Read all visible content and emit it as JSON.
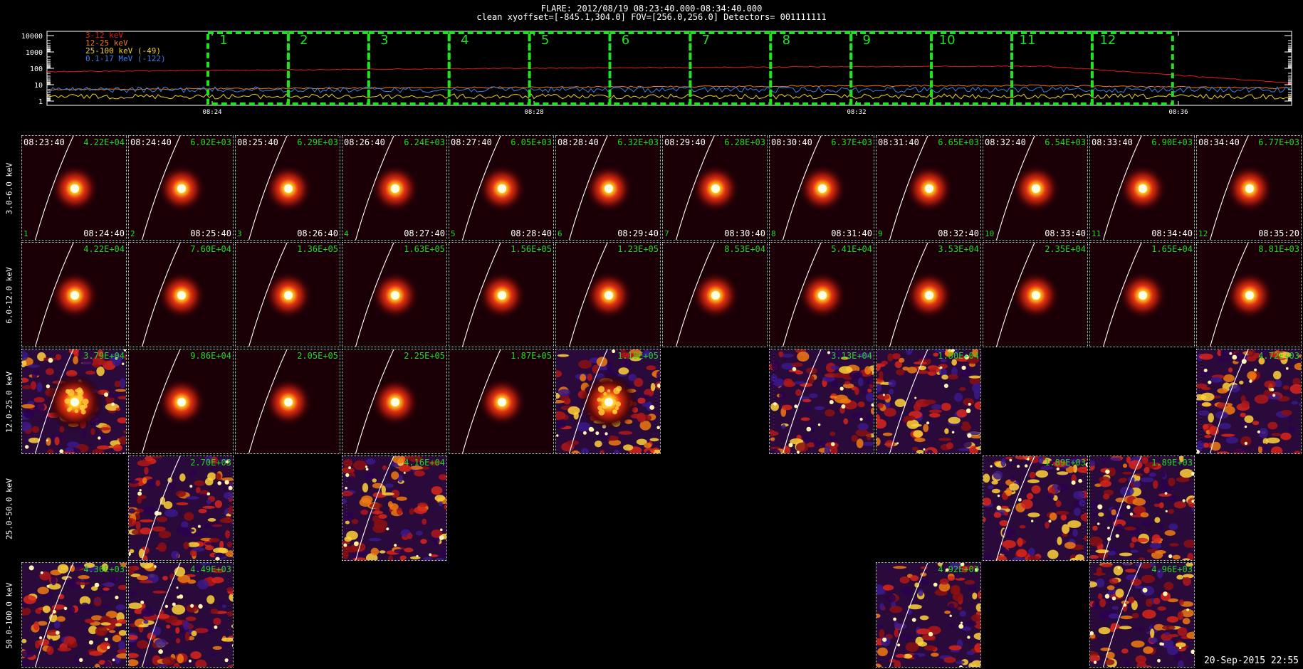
{
  "header": {
    "line1": "FLARE: 2012/08/19 08:23:40.000-08:34:40.000",
    "line2": "clean    xyoffset=[-845.1,304.0]    FOV=[256.0,256.0]    Detectors= 001111111"
  },
  "lightcurve": {
    "y_ticks": [
      "10000",
      "1000",
      "100",
      "10",
      "1"
    ],
    "x_ticks": [
      "08:24",
      "08:28",
      "08:32",
      "08:36"
    ],
    "legend": [
      {
        "label": "3-12 keV",
        "color": "#e21b1b"
      },
      {
        "label": "12-25 keV",
        "color": "#f07a10"
      },
      {
        "label": "25-100 keV (-49)",
        "color": "#f2d21a"
      },
      {
        "label": "0.1-17 MeV (-122)",
        "color": "#3b7fe8"
      }
    ],
    "interval_labels": [
      "1",
      "2",
      "3",
      "4",
      "5",
      "6",
      "7",
      "8",
      "9",
      "10",
      "11",
      "12"
    ],
    "box_color": "#22e022"
  },
  "rows": [
    {
      "label": "3.0-6.0 keV"
    },
    {
      "label": "6.0-12.0 keV"
    },
    {
      "label": "12.0-25.0 keV"
    },
    {
      "label": "25.0-50.0 keV"
    },
    {
      "label": "50.0-100.0 keV"
    }
  ],
  "panels": [
    {
      "row": 0,
      "col": 0,
      "t_start": "08:23:40",
      "max": "4.22E+04",
      "idx": "1",
      "t_end": "08:24:40",
      "kind": "source"
    },
    {
      "row": 0,
      "col": 1,
      "t_start": "08:24:40",
      "max": "6.02E+03",
      "idx": "2",
      "t_end": "08:25:40",
      "kind": "source"
    },
    {
      "row": 0,
      "col": 2,
      "t_start": "08:25:40",
      "max": "6.29E+03",
      "idx": "3",
      "t_end": "08:26:40",
      "kind": "source"
    },
    {
      "row": 0,
      "col": 3,
      "t_start": "08:26:40",
      "max": "6.24E+03",
      "idx": "4",
      "t_end": "08:27:40",
      "kind": "source"
    },
    {
      "row": 0,
      "col": 4,
      "t_start": "08:27:40",
      "max": "6.05E+03",
      "idx": "5",
      "t_end": "08:28:40",
      "kind": "source"
    },
    {
      "row": 0,
      "col": 5,
      "t_start": "08:28:40",
      "max": "6.32E+03",
      "idx": "6",
      "t_end": "08:29:40",
      "kind": "source"
    },
    {
      "row": 0,
      "col": 6,
      "t_start": "08:29:40",
      "max": "6.28E+03",
      "idx": "7",
      "t_end": "08:30:40",
      "kind": "source"
    },
    {
      "row": 0,
      "col": 7,
      "t_start": "08:30:40",
      "max": "6.37E+03",
      "idx": "8",
      "t_end": "08:31:40",
      "kind": "source"
    },
    {
      "row": 0,
      "col": 8,
      "t_start": "08:31:40",
      "max": "6.65E+03",
      "idx": "9",
      "t_end": "08:32:40",
      "kind": "source"
    },
    {
      "row": 0,
      "col": 9,
      "t_start": "08:32:40",
      "max": "6.54E+03",
      "idx": "10",
      "t_end": "08:33:40",
      "kind": "source"
    },
    {
      "row": 0,
      "col": 10,
      "t_start": "08:33:40",
      "max": "6.90E+03",
      "idx": "11",
      "t_end": "08:34:40",
      "kind": "source"
    },
    {
      "row": 0,
      "col": 11,
      "t_start": "08:34:40",
      "max": "6.77E+03",
      "idx": "12",
      "t_end": "08:35:20",
      "kind": "source"
    },
    {
      "row": 1,
      "col": 0,
      "max": "4.22E+04",
      "kind": "source"
    },
    {
      "row": 1,
      "col": 1,
      "max": "7.60E+04",
      "kind": "source"
    },
    {
      "row": 1,
      "col": 2,
      "max": "1.36E+05",
      "kind": "source"
    },
    {
      "row": 1,
      "col": 3,
      "max": "1.63E+05",
      "kind": "source"
    },
    {
      "row": 1,
      "col": 4,
      "max": "1.56E+05",
      "kind": "source"
    },
    {
      "row": 1,
      "col": 5,
      "max": "1.23E+05",
      "kind": "source"
    },
    {
      "row": 1,
      "col": 6,
      "max": "8.53E+04",
      "kind": "source"
    },
    {
      "row": 1,
      "col": 7,
      "max": "5.41E+04",
      "kind": "source"
    },
    {
      "row": 1,
      "col": 8,
      "max": "3.53E+04",
      "kind": "source"
    },
    {
      "row": 1,
      "col": 9,
      "max": "2.35E+04",
      "kind": "source"
    },
    {
      "row": 1,
      "col": 10,
      "max": "1.65E+04",
      "kind": "source"
    },
    {
      "row": 1,
      "col": 11,
      "max": "8.81E+03",
      "kind": "source"
    },
    {
      "row": 2,
      "col": 0,
      "max": "3.79E+04",
      "kind": "noisy"
    },
    {
      "row": 2,
      "col": 1,
      "max": "9.86E+04",
      "kind": "source"
    },
    {
      "row": 2,
      "col": 2,
      "max": "2.05E+05",
      "kind": "source"
    },
    {
      "row": 2,
      "col": 3,
      "max": "2.25E+05",
      "kind": "source"
    },
    {
      "row": 2,
      "col": 4,
      "max": "1.87E+05",
      "kind": "source"
    },
    {
      "row": 2,
      "col": 5,
      "max": "1.18E+05",
      "kind": "noisy"
    },
    {
      "row": 2,
      "col": 7,
      "max": "3.13E+04",
      "kind": "noise"
    },
    {
      "row": 2,
      "col": 8,
      "max": "1.80E+04",
      "kind": "noise"
    },
    {
      "row": 2,
      "col": 11,
      "max": "4.72E+03",
      "kind": "noise"
    },
    {
      "row": 3,
      "col": 1,
      "max": "2.70E+03",
      "kind": "noise"
    },
    {
      "row": 3,
      "col": 3,
      "max": "4.16E+04",
      "kind": "noise"
    },
    {
      "row": 3,
      "col": 9,
      "max": "1.89E+03",
      "kind": "noise"
    },
    {
      "row": 3,
      "col": 10,
      "max": "1.89E+03",
      "kind": "noise"
    },
    {
      "row": 4,
      "col": 0,
      "max": "4.30E+03",
      "kind": "noise"
    },
    {
      "row": 4,
      "col": 1,
      "max": "4.49E+03",
      "kind": "noise"
    },
    {
      "row": 4,
      "col": 8,
      "max": "4.92E+03",
      "kind": "noise"
    },
    {
      "row": 4,
      "col": 10,
      "max": "4.96E+03",
      "kind": "noise"
    }
  ],
  "footer": {
    "timestamp": "20-Sep-2015 22:55"
  },
  "colors": {
    "max_text": "#22d822",
    "limb": "#ffffff",
    "background": "#000000"
  }
}
